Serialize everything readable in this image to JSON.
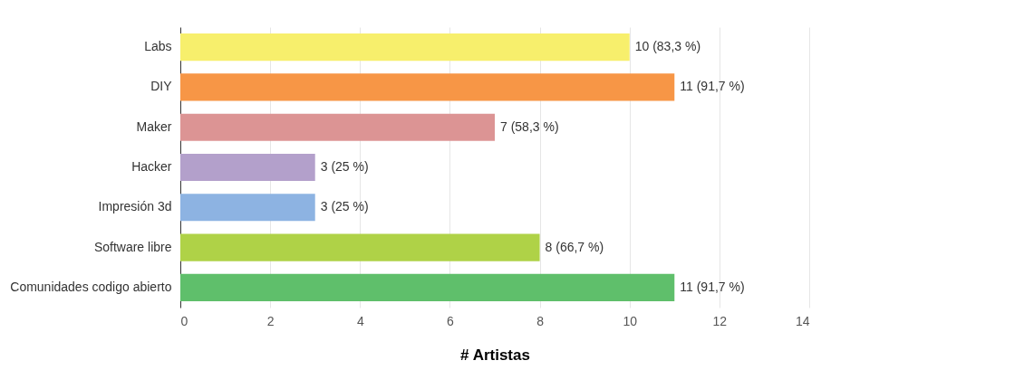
{
  "chart_data": {
    "type": "bar",
    "orientation": "horizontal",
    "xlabel": "# Artistas",
    "categories": [
      "Labs",
      "DIY",
      "Maker",
      "Hacker",
      "Impresión 3d",
      "Software libre",
      "Comunidades codigo abierto"
    ],
    "values": [
      10,
      11,
      7,
      3,
      3,
      8,
      11
    ],
    "colors": [
      "#f7ef6c",
      "#f79646",
      "#dc9494",
      "#b3a0cb",
      "#8db3e2",
      "#afd247",
      "#5fbf6b"
    ],
    "value_labels": [
      "10 (83,3 %)",
      "11 (91,7 %)",
      "7 (58,3 %)",
      "3 (25 %)",
      "3 (25 %)",
      "8 (66,7 %)",
      "11 (91,7 %)"
    ],
    "xlim": [
      0,
      14
    ],
    "xticks": [
      0,
      2,
      4,
      6,
      8,
      10,
      12,
      14
    ],
    "grid": "x",
    "legend": false
  }
}
